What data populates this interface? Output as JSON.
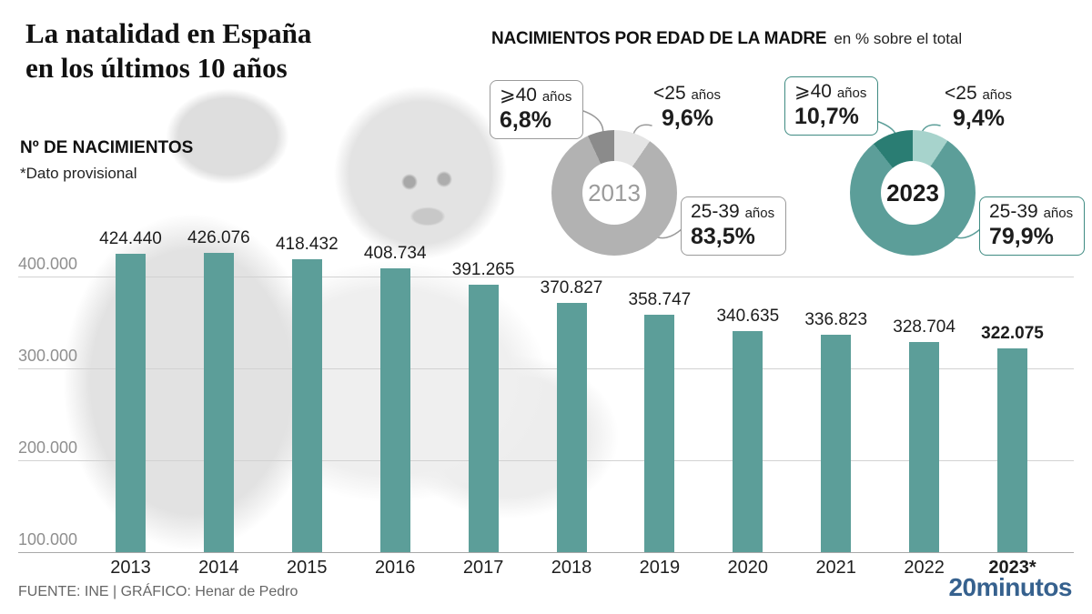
{
  "header": {
    "title_line1": "La natalidad en España",
    "title_line2": "en los últimos 10 años",
    "left_chart_title": "Nº DE NACIMIENTOS",
    "left_chart_note": "*Dato provisional",
    "right_chart_title": "NACIMIENTOS POR EDAD DE LA MADRE",
    "right_chart_subtitle": "en % sobre el total"
  },
  "footer": {
    "source": "FUENTE: INE  |  GRÁFICO: Henar de Pedro",
    "logo": "20minutos",
    "logo_color": "#36618e"
  },
  "chart_data": [
    {
      "type": "bar",
      "title": "Nº DE NACIMIENTOS",
      "note": "*Dato provisional",
      "bar_color": "#5c9e99",
      "ylim": [
        100000,
        430000
      ],
      "grid": true,
      "yticks": [
        {
          "value": 400000,
          "label": "400.000"
        },
        {
          "value": 300000,
          "label": "300.000"
        },
        {
          "value": 200000,
          "label": "200.000"
        },
        {
          "value": 100000,
          "label": "100.000"
        }
      ],
      "items": [
        {
          "category": "2013",
          "value": 424440,
          "value_label": "424.440",
          "bold": false
        },
        {
          "category": "2014",
          "value": 426076,
          "value_label": "426.076",
          "bold": false
        },
        {
          "category": "2015",
          "value": 418432,
          "value_label": "418.432",
          "bold": false
        },
        {
          "category": "2016",
          "value": 408734,
          "value_label": "408.734",
          "bold": false
        },
        {
          "category": "2017",
          "value": 391265,
          "value_label": "391.265",
          "bold": false
        },
        {
          "category": "2018",
          "value": 370827,
          "value_label": "370.827",
          "bold": false
        },
        {
          "category": "2019",
          "value": 358747,
          "value_label": "358.747",
          "bold": false
        },
        {
          "category": "2020",
          "value": 340635,
          "value_label": "340.635",
          "bold": false
        },
        {
          "category": "2021",
          "value": 336823,
          "value_label": "336.823",
          "bold": false
        },
        {
          "category": "2022",
          "value": 328704,
          "value_label": "328.704",
          "bold": false
        },
        {
          "category": "2023*",
          "value": 322075,
          "value_label": "322.075",
          "bold": true
        }
      ]
    },
    {
      "type": "pie",
      "center_label": "2013",
      "center_label_color": "#9b9b9b",
      "box_border_color": "#9a9a9a",
      "leader_color": "#9a9a9a",
      "slices": [
        {
          "age": "<25",
          "unit": "años",
          "value": 9.6,
          "pct_label": "9,6%",
          "color": "#e4e4e4"
        },
        {
          "age": "25-39",
          "unit": "años",
          "value": 83.5,
          "pct_label": "83,5%",
          "color": "#b2b2b2"
        },
        {
          "age": "⩾40",
          "unit": "años",
          "value": 6.8,
          "pct_label": "6,8%",
          "color": "#8b8b8b"
        }
      ]
    },
    {
      "type": "pie",
      "center_label": "2023",
      "center_label_color": "#1a1a1a",
      "box_border_color": "#3f8b82",
      "leader_color": "#5c9e99",
      "slices": [
        {
          "age": "<25",
          "unit": "años",
          "value": 9.4,
          "pct_label": "9,4%",
          "color": "#a7d3cc"
        },
        {
          "age": "25-39",
          "unit": "años",
          "value": 79.9,
          "pct_label": "79,9%",
          "color": "#5c9e99"
        },
        {
          "age": "⩾40",
          "unit": "años",
          "value": 10.7,
          "pct_label": "10,7%",
          "color": "#2a7d73"
        }
      ]
    }
  ]
}
